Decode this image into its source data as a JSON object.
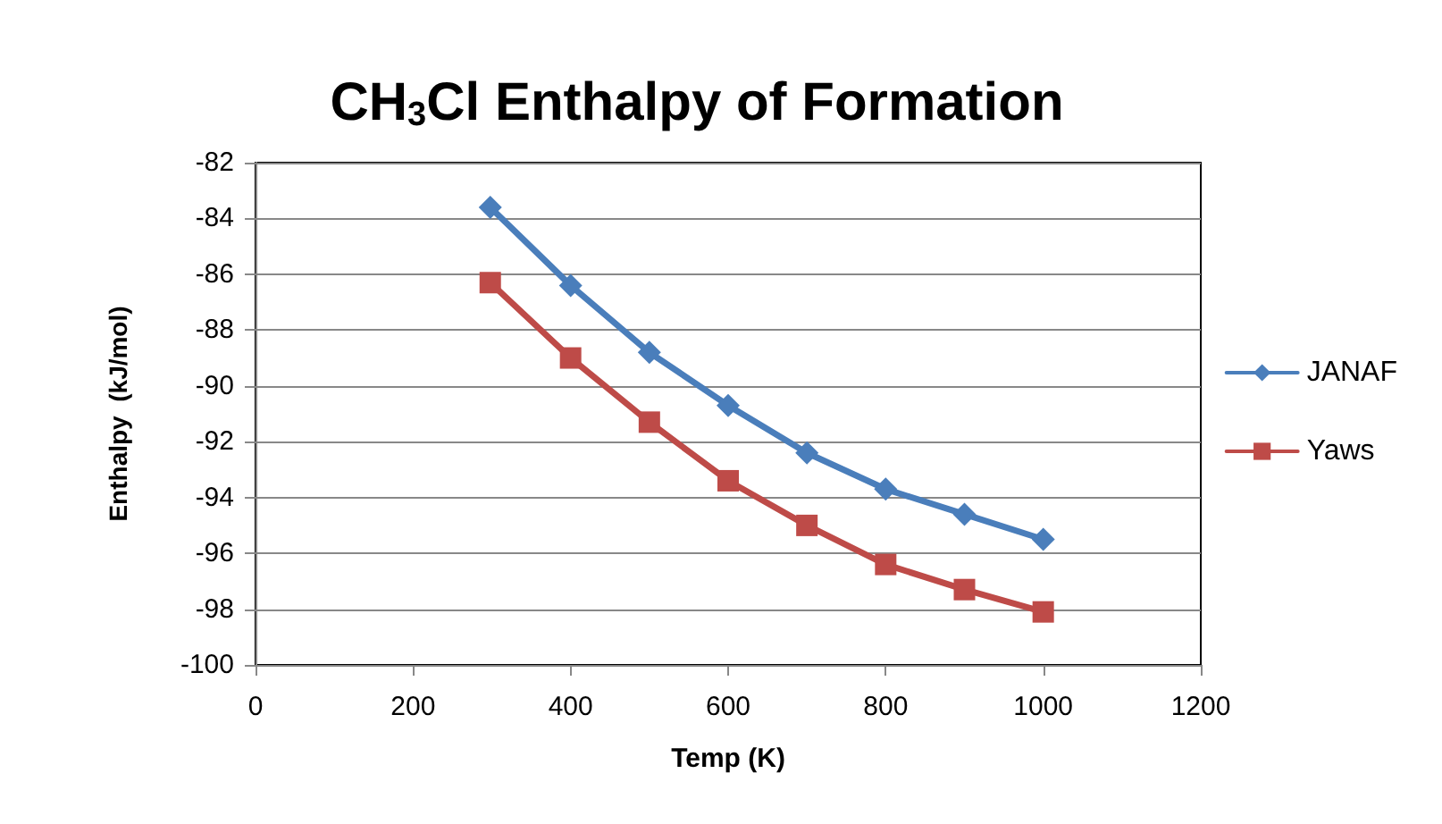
{
  "chart_data": {
    "type": "line",
    "title": "CH$_{3}$Cl Enthalpy of Formation",
    "xlabel": "Temp (K)",
    "ylabel": "Enthalpy  (kJ/mol)",
    "x": [
      298,
      400,
      500,
      600,
      700,
      800,
      900,
      1000
    ],
    "series": [
      {
        "name": "JANAF",
        "color": "#4a7ebb",
        "marker": "diamond",
        "values": [
          -83.6,
          -86.4,
          -88.8,
          -90.7,
          -92.4,
          -93.7,
          -94.6,
          -95.5
        ]
      },
      {
        "name": "Yaws",
        "color": "#be4b48",
        "marker": "square",
        "values": [
          -86.3,
          -89.0,
          -91.3,
          -93.4,
          -95.0,
          -96.4,
          -97.3,
          -98.1
        ]
      }
    ],
    "xlim": [
      0,
      1200
    ],
    "xticks": [
      0,
      200,
      400,
      600,
      800,
      1000,
      1200
    ],
    "ylim": [
      -100,
      -82
    ],
    "yticks": [
      -100,
      -98,
      -96,
      -94,
      -92,
      -90,
      -88,
      -86,
      -84,
      -82
    ],
    "grid": "y",
    "legend": "right",
    "line_style": "solid"
  }
}
